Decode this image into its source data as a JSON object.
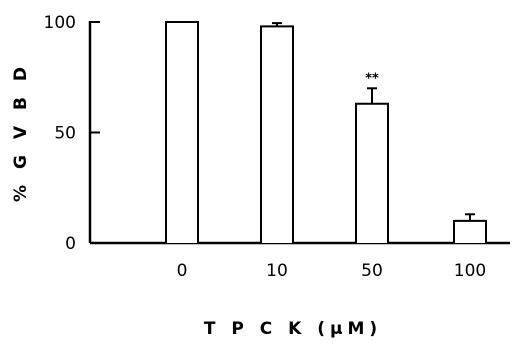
{
  "chart_data": {
    "type": "bar",
    "title": "",
    "xlabel": "T P C K (μM)",
    "ylabel": "% G V B D",
    "categories": [
      "0",
      "10",
      "50",
      "100"
    ],
    "values": [
      100,
      98,
      63,
      10
    ],
    "errors": [
      0,
      1.5,
      7,
      3
    ],
    "annotations": [
      {
        "category": "50",
        "text": "**"
      }
    ],
    "ylim": [
      0,
      100
    ],
    "yticks": [
      0,
      50,
      100
    ],
    "grid": false,
    "legend": "none",
    "bar_fill": "#ffffff",
    "line_color": "#000000"
  }
}
